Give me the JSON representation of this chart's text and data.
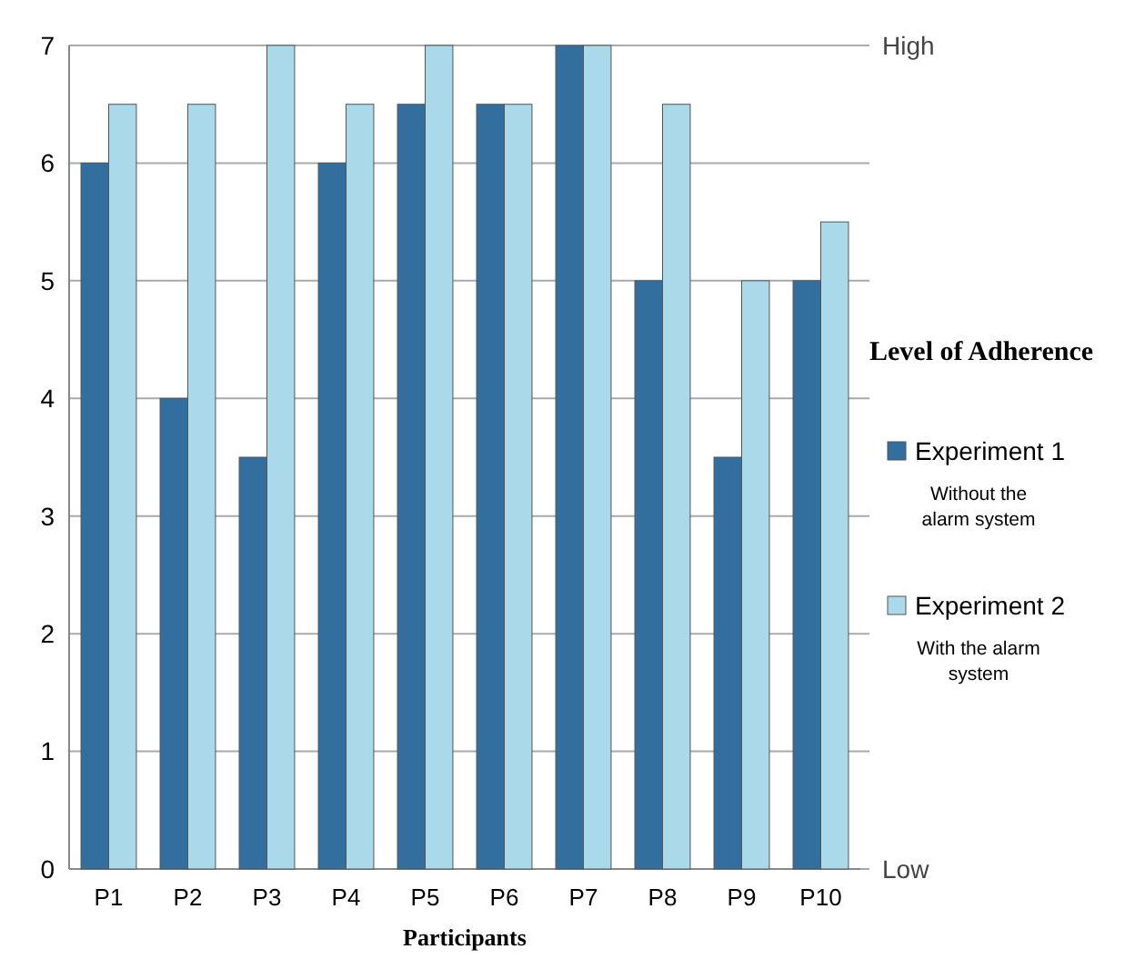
{
  "chart_data": {
    "type": "bar",
    "xlabel": "Participants",
    "legend_title": "Level of  Adherence",
    "categories": [
      "P1",
      "P2",
      "P3",
      "P4",
      "P5",
      "P6",
      "P7",
      "P8",
      "P9",
      "P10"
    ],
    "series": [
      {
        "name": "Experiment 1",
        "color": "#336f9e",
        "values": [
          6,
          4,
          3.5,
          6,
          6.5,
          6.5,
          7,
          5,
          3.5,
          5
        ]
      },
      {
        "name": "Experiment 2",
        "color": "#aad9e9",
        "values": [
          6.5,
          6.5,
          7,
          6.5,
          7,
          6.5,
          7,
          6.5,
          5,
          5.5
        ]
      }
    ],
    "ylim": [
      0,
      7
    ],
    "yticks": [
      0,
      1,
      2,
      3,
      4,
      5,
      6,
      7
    ],
    "grid": "y",
    "legend": "right",
    "annotations": [
      "Without the alarm system",
      "With the alarm system",
      "High",
      "Low"
    ]
  }
}
